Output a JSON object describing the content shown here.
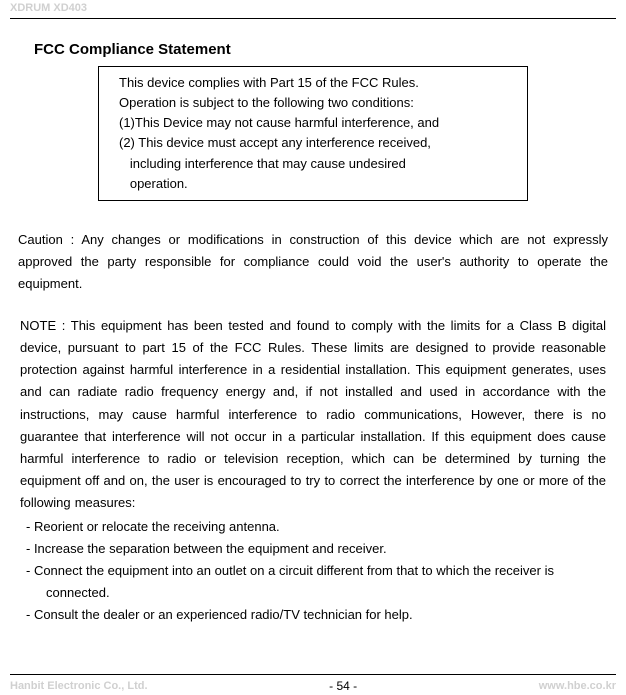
{
  "header": {
    "product": "XDRUM XD403"
  },
  "title": "FCC Compliance Statement",
  "complianceBox": {
    "line1": "This device complies with Part 15 of the FCC Rules.",
    "line2": "Operation is subject to the following two conditions:",
    "line3": "(1)This Device may not cause harmful interference, and",
    "line4": "(2) This device must accept any interference received,",
    "line5": "   including interference that may cause undesired",
    "line6": "   operation."
  },
  "caution": "Caution : Any changes or modifications in construction of this device which are not expressly approved the party responsible for compliance could void the user's authority to operate the equipment.",
  "note": "NOTE : This equipment has been tested and found to comply with the limits for a Class B digital device, pursuant to part 15 of the FCC Rules. These limits are designed to provide reasonable protection against harmful interference in a residential installation. This equipment generates, uses and can radiate radio frequency energy and, if not installed and used in accordance with the instructions, may cause harmful interference to radio communications, However, there is no guarantee that interference will not occur in a particular installation. If this equipment does cause harmful interference to radio or television reception, which can be determined by turning the equipment off and on, the user is encouraged to try to correct the interference by one or more of the following measures:",
  "measures": {
    "m1": "- Reorient or relocate the receiving antenna.",
    "m2": "- Increase the separation between the equipment and receiver.",
    "m3a": "- Connect the equipment into an outlet on a circuit different from that to which the receiver is",
    "m3b": "connected.",
    "m4": "- Consult the dealer or an experienced radio/TV technician for help."
  },
  "footer": {
    "left": "Hanbit Electronic Co., Ltd.",
    "center": "- 54 -",
    "right": "www.hbe.co.kr"
  },
  "colors": {
    "text": "#000000",
    "watermark": "#d0d0d0",
    "background": "#ffffff",
    "rule": "#000000"
  },
  "fonts": {
    "body_size_pt": 10,
    "title_size_pt": 11,
    "footer_size_pt": 8,
    "family": "Arial"
  }
}
